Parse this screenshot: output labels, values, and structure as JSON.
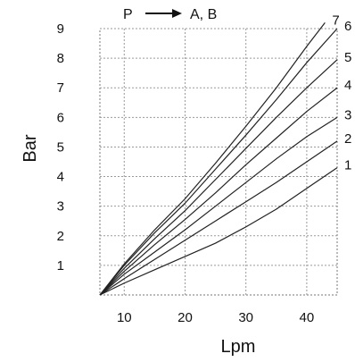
{
  "chart_data": {
    "type": "line",
    "title_left": "P",
    "title_right": "A, B",
    "xlabel": "Lpm",
    "ylabel": "Bar",
    "xlim": [
      6,
      45
    ],
    "ylim": [
      0,
      9
    ],
    "xticks": [
      10,
      20,
      30,
      40
    ],
    "yticks": [
      1,
      2,
      3,
      4,
      5,
      6,
      7,
      8,
      9
    ],
    "grid": true,
    "series": [
      {
        "name": "1",
        "x": [
          6,
          10,
          15,
          20,
          25,
          30,
          35,
          40,
          45
        ],
        "y": [
          0,
          0.4,
          0.85,
          1.3,
          1.75,
          2.3,
          2.9,
          3.6,
          4.3
        ]
      },
      {
        "name": "2",
        "x": [
          6,
          10,
          15,
          20,
          25,
          30,
          35,
          40,
          45
        ],
        "y": [
          0,
          0.55,
          1.2,
          1.85,
          2.5,
          3.15,
          3.8,
          4.5,
          5.2
        ]
      },
      {
        "name": "3",
        "x": [
          6,
          10,
          15,
          20,
          25,
          30,
          35,
          40,
          45
        ],
        "y": [
          0,
          0.7,
          1.45,
          2.2,
          3.0,
          3.8,
          4.6,
          5.35,
          6.0
        ]
      },
      {
        "name": "4",
        "x": [
          6,
          10,
          15,
          20,
          25,
          30,
          35,
          40,
          45
        ],
        "y": [
          0,
          0.8,
          1.7,
          2.55,
          3.45,
          4.4,
          5.3,
          6.2,
          7.0
        ]
      },
      {
        "name": "5",
        "x": [
          6,
          10,
          15,
          20,
          25,
          30,
          35,
          40,
          45
        ],
        "y": [
          0,
          0.9,
          1.9,
          2.85,
          3.9,
          4.95,
          6.0,
          7.0,
          7.95
        ]
      },
      {
        "name": "6",
        "x": [
          6,
          10,
          15,
          20,
          25,
          30,
          35,
          40,
          45
        ],
        "y": [
          0,
          1.0,
          2.1,
          3.1,
          4.25,
          5.4,
          6.6,
          7.85,
          9.0
        ]
      },
      {
        "name": "7",
        "x": [
          6,
          10,
          15,
          20,
          25,
          30,
          35,
          40,
          43
        ],
        "y": [
          0,
          1.05,
          2.2,
          3.25,
          4.45,
          5.7,
          7.0,
          8.4,
          9.2
        ]
      }
    ]
  }
}
